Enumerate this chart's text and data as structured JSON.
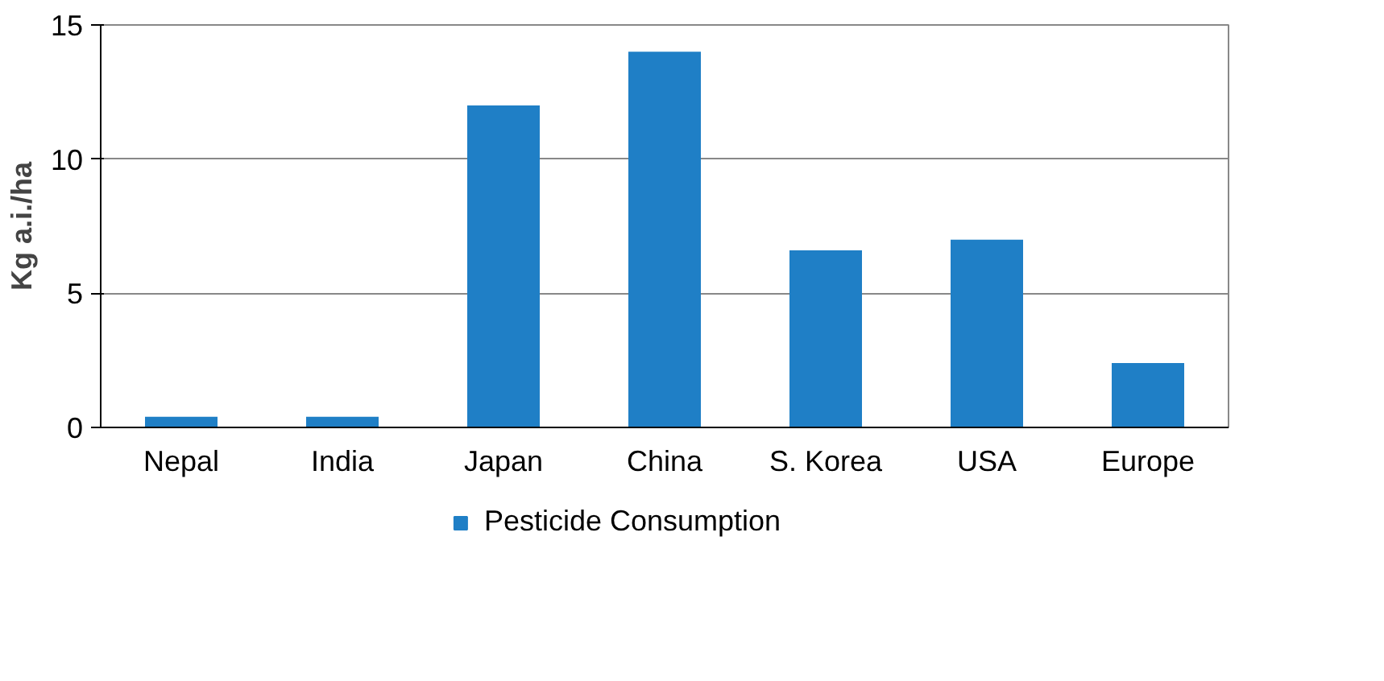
{
  "chart_data": {
    "type": "bar",
    "ylabel": "Kg a.i./ha",
    "categories": [
      "Nepal",
      "India",
      "Japan",
      "China",
      "S. Korea",
      "USA",
      "Europe"
    ],
    "series": [
      {
        "name": "Pesticide Consumption",
        "color": "#1f7fc6",
        "values": [
          0.4,
          0.4,
          12,
          14,
          6.6,
          7,
          2.4
        ]
      }
    ],
    "ylim": [
      0,
      15
    ],
    "yticks": [
      0,
      5,
      10,
      15
    ],
    "grid": "y",
    "legend": "bottom"
  }
}
